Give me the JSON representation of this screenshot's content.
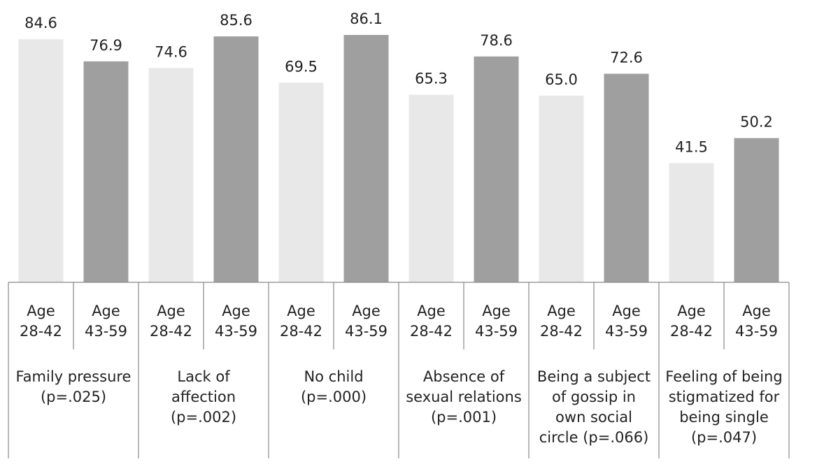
{
  "chart_data": {
    "type": "bar",
    "title": "",
    "xlabel": "",
    "ylabel": "",
    "ylim": [
      0,
      90
    ],
    "grid": false,
    "legend": "none",
    "series_colors": [
      "#e8e8e8",
      "#9f9f9f"
    ],
    "groups": [
      {
        "label_lines": [
          "Family pressure",
          "(p=.025)"
        ],
        "bars": [
          {
            "age": [
              "Age",
              "28-42"
            ],
            "value": 84.6,
            "value_label": "84.6"
          },
          {
            "age": [
              "Age",
              "43-59"
            ],
            "value": 76.9,
            "value_label": "76.9"
          }
        ]
      },
      {
        "label_lines": [
          "Lack of",
          "affection",
          "(p=.002)"
        ],
        "bars": [
          {
            "age": [
              "Age",
              "28-42"
            ],
            "value": 74.6,
            "value_label": "74.6"
          },
          {
            "age": [
              "Age",
              "43-59"
            ],
            "value": 85.6,
            "value_label": "85.6"
          }
        ]
      },
      {
        "label_lines": [
          "No child",
          "(p=.000)"
        ],
        "bars": [
          {
            "age": [
              "Age",
              "28-42"
            ],
            "value": 69.5,
            "value_label": "69.5"
          },
          {
            "age": [
              "Age",
              "43-59"
            ],
            "value": 86.1,
            "value_label": "86.1"
          }
        ]
      },
      {
        "label_lines": [
          "Absence of",
          "sexual relations",
          "(p=.001)"
        ],
        "bars": [
          {
            "age": [
              "Age",
              "28-42"
            ],
            "value": 65.3,
            "value_label": "65.3"
          },
          {
            "age": [
              "Age",
              "43-59"
            ],
            "value": 78.6,
            "value_label": "78.6"
          }
        ]
      },
      {
        "label_lines": [
          "Being a subject",
          "of gossip in",
          "own social",
          "circle (p=.066)"
        ],
        "bars": [
          {
            "age": [
              "Age",
              "28-42"
            ],
            "value": 65.0,
            "value_label": "65.0"
          },
          {
            "age": [
              "Age",
              "43-59"
            ],
            "value": 72.6,
            "value_label": "72.6"
          }
        ]
      },
      {
        "label_lines": [
          "Feeling of being",
          "stigmatized for",
          "being single",
          "(p=.047)"
        ],
        "bars": [
          {
            "age": [
              "Age",
              "28-42"
            ],
            "value": 41.5,
            "value_label": "41.5"
          },
          {
            "age": [
              "Age",
              "43-59"
            ],
            "value": 50.2,
            "value_label": "50.2"
          }
        ]
      }
    ]
  }
}
